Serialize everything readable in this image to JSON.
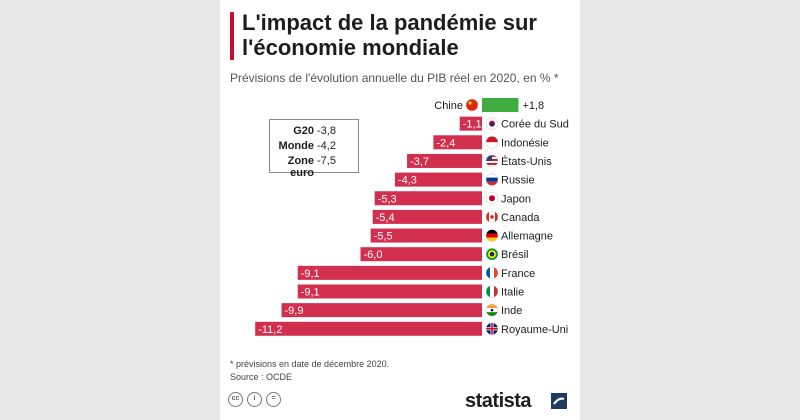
{
  "title": "L'impact de la pandémie sur\nl'économie mondiale",
  "subtitle": "Prévisions de l'évolution annuelle du PIB réel en 2020, en % *",
  "summary": [
    {
      "label": "G20",
      "value": "-3,8"
    },
    {
      "label": "Monde",
      "value": "-4,2"
    },
    {
      "label": "Zone euro",
      "value": "-7,5"
    }
  ],
  "footnote": "* prévisions en date de décembre 2020.",
  "source": "Source : OCDE",
  "logo": "statista",
  "license_icons": [
    "cc-icon",
    "by-icon",
    "nd-icon"
  ],
  "colors": {
    "negative": "#d12f4d",
    "positive": "#3fae3f",
    "title_bar": "#c8102e"
  },
  "chart_data": {
    "type": "bar",
    "orientation": "horizontal",
    "title": "L'impact de la pandémie sur l'économie mondiale",
    "subtitle": "Prévisions de l'évolution annuelle du PIB réel en 2020, en % *",
    "categories": [
      "Chine",
      "Corée du Sud",
      "Indonésie",
      "États-Unis",
      "Russie",
      "Japon",
      "Canada",
      "Allemagne",
      "Brésil",
      "France",
      "Italie",
      "Inde",
      "Royaume-Uni"
    ],
    "values": [
      1.8,
      -1.1,
      -2.4,
      -3.7,
      -4.3,
      -5.3,
      -5.4,
      -5.5,
      -6.0,
      -9.1,
      -9.1,
      -9.9,
      -11.2
    ],
    "value_labels": [
      "+1,8",
      "-1,1",
      "-2,4",
      "-3,7",
      "-4,3",
      "-5,3",
      "-5,4",
      "-5,5",
      "-6,0",
      "-9,1",
      "-9,1",
      "-9,9",
      "-11,2"
    ],
    "flags": [
      "cn",
      "kr",
      "id",
      "us",
      "ru",
      "jp",
      "ca",
      "de",
      "br",
      "fr",
      "it",
      "in",
      "gb"
    ],
    "xlim": [
      -11.2,
      1.8
    ],
    "grid": false,
    "legend": "none"
  }
}
